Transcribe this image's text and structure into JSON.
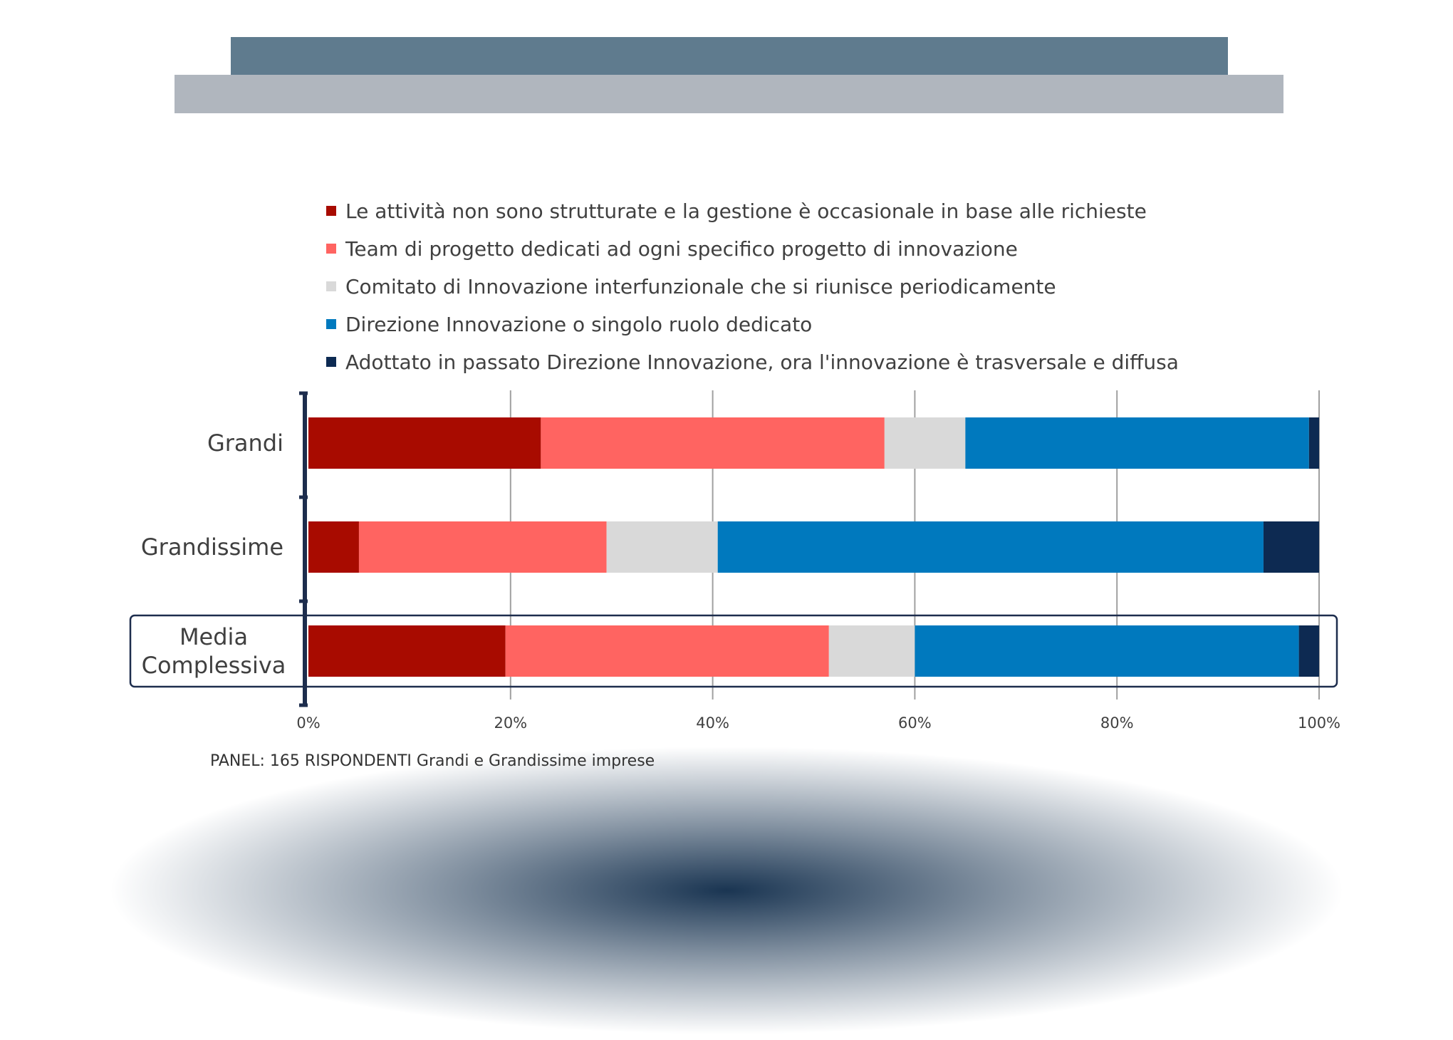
{
  "colors": {
    "header_top": "#5f7b8e",
    "header_bottom": "#b0b6be",
    "axis_bracket": "#1d2d4d",
    "gridline": "#a0a0a0",
    "highlight_border": "#1d2d4d",
    "glow": "#1a3552"
  },
  "chart_data": {
    "type": "bar",
    "orientation": "horizontal",
    "stacked": true,
    "title": "",
    "xlabel": "",
    "ylabel": "",
    "xlim": [
      0,
      100
    ],
    "grid": true,
    "legend_position": "top",
    "x_ticks": [
      "0%",
      "20%",
      "40%",
      "60%",
      "80%",
      "100%"
    ],
    "categories": [
      "Grandi",
      "Grandissime",
      "Media Complessiva"
    ],
    "category_lines": [
      [
        "Grandi"
      ],
      [
        "Grandissime"
      ],
      [
        "Media",
        "Complessiva"
      ]
    ],
    "highlighted_category": "Media Complessiva",
    "series": [
      {
        "name": "Le attività non sono strutturate e la gestione è occasionale in base alle richieste",
        "color": "#a80b00",
        "values": [
          23,
          5,
          19.5
        ]
      },
      {
        "name": "Team di progetto dedicati ad ogni specifico progetto di innovazione",
        "color": "#ff6461",
        "values": [
          34,
          24.5,
          32
        ]
      },
      {
        "name": "Comitato di Innovazione interfunzionale che si riunisce periodicamente",
        "color": "#d9d9d9",
        "values": [
          8,
          11,
          8.5
        ]
      },
      {
        "name": "Direzione Innovazione o singolo ruolo dedicato",
        "color": "#0079be",
        "values": [
          34,
          54,
          38
        ]
      },
      {
        "name": "Adottato in passato Direzione Innovazione, ora l'innovazione è trasversale e diffusa",
        "color": "#0d2a52",
        "values": [
          1,
          5.5,
          2
        ]
      }
    ]
  },
  "footnote": "PANEL: 165 RISPONDENTI Grandi e Grandissime imprese"
}
